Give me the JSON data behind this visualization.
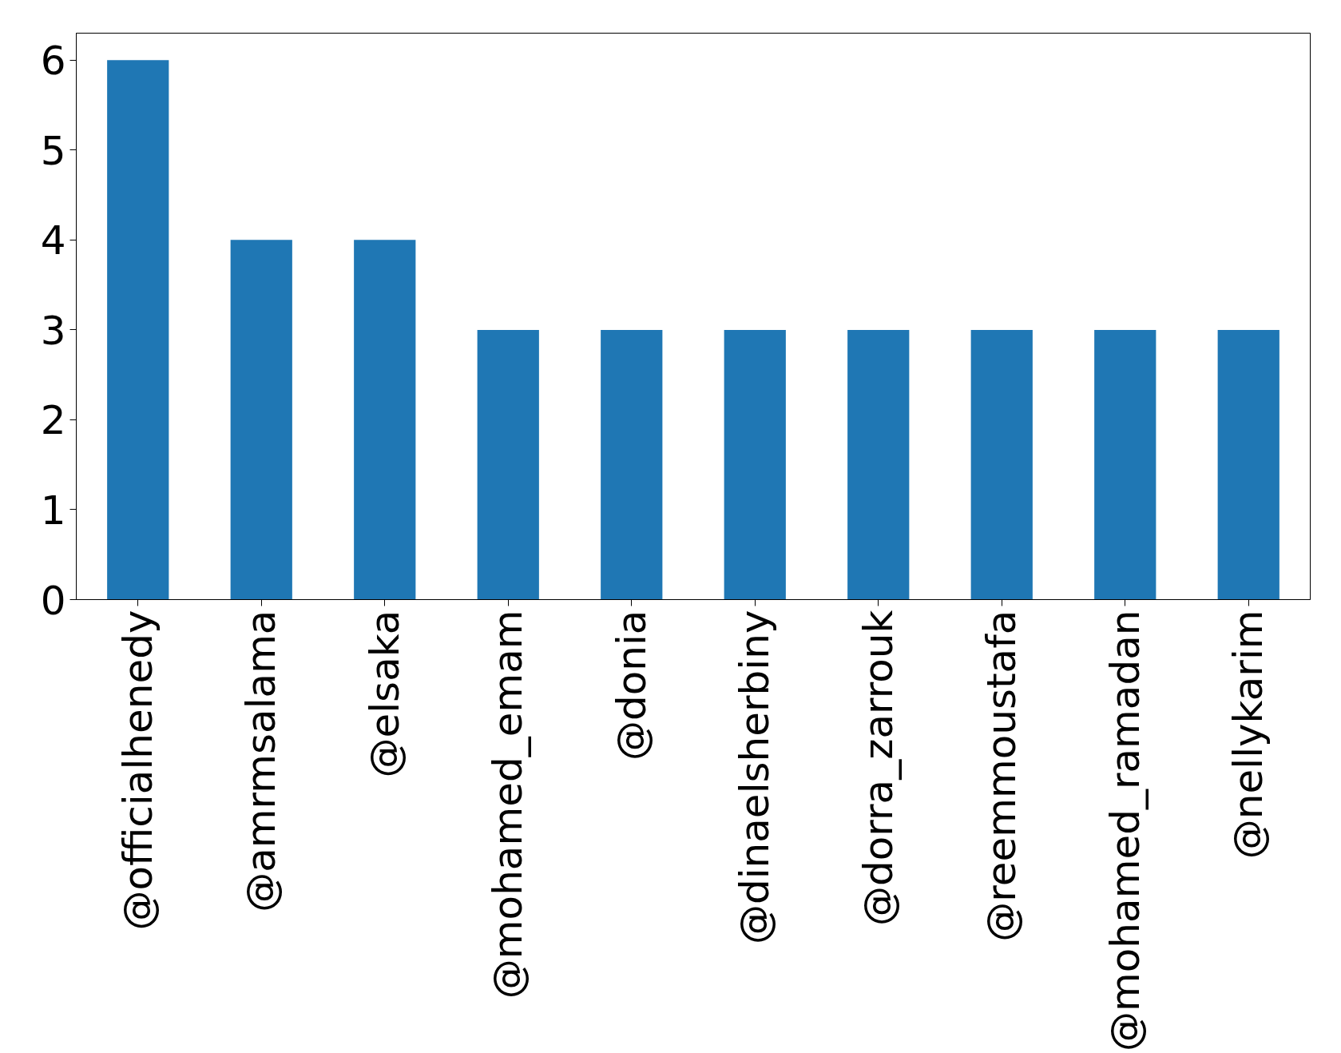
{
  "chart_data": {
    "type": "bar",
    "categories": [
      "@officialhenedy",
      "@amrmsalama",
      "@elsaka",
      "@mohamed_emam",
      "@donia",
      "@dinaelsherbiny",
      "@dorra_zarrouk",
      "@reemmoustafa",
      "@mohamed_ramadan",
      "@nellykarim"
    ],
    "values": [
      6,
      4,
      4,
      3,
      3,
      3,
      3,
      3,
      3,
      3
    ],
    "color": "#1f77b4",
    "ylim": [
      0,
      6.3
    ],
    "yticks": [
      0,
      1,
      2,
      3,
      4,
      5,
      6
    ],
    "grid": false
  }
}
